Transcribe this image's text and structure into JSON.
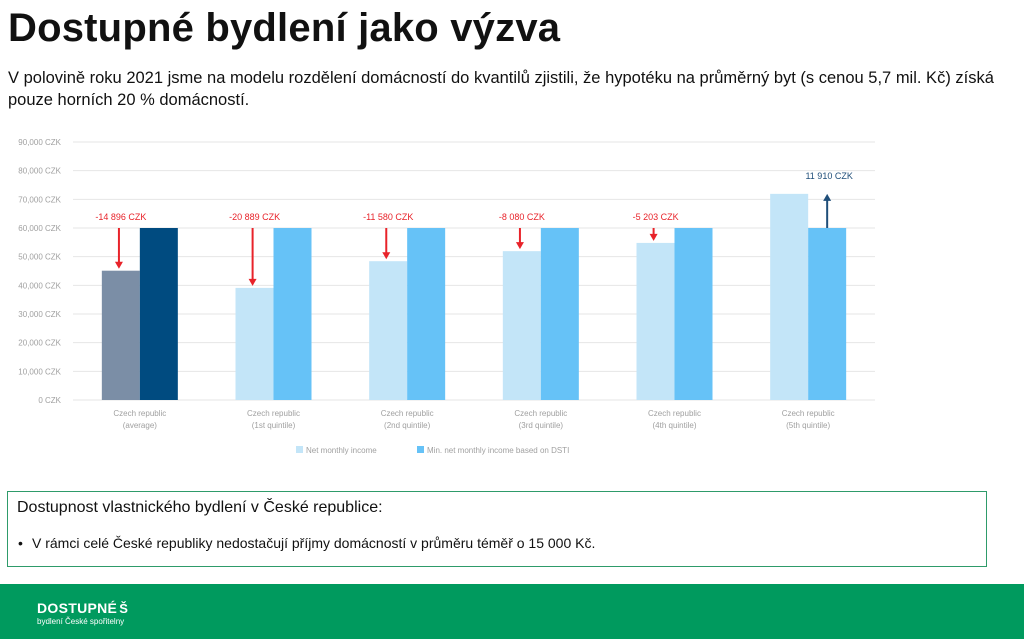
{
  "page": {
    "title": "Dostupné bydlení jako výzva",
    "subtitle": "V polovině roku 2021 jsme na modelu rozdělení domácností do kvantilů zjistili, že hypotéku na průměrný byt (s cenou 5,7 mil. Kč) získá pouze horních 20 % domácností."
  },
  "chart_data": {
    "type": "bar",
    "categories": [
      [
        "Czech republic",
        "(average)"
      ],
      [
        "Czech republic",
        "(1st quintile)"
      ],
      [
        "Czech republic",
        "(2nd quintile)"
      ],
      [
        "Czech republic",
        "(3rd quintile)"
      ],
      [
        "Czech republic",
        "(4th quintile)"
      ],
      [
        "Czech republic",
        "(5th quintile)"
      ]
    ],
    "series": [
      {
        "name": "Net monthly income",
        "values": [
          45104,
          39111,
          48420,
          51920,
          54797,
          71910
        ]
      },
      {
        "name": "Min. net monthly income based on DSTI",
        "values": [
          60000,
          60000,
          60000,
          60000,
          60000,
          60000
        ]
      }
    ],
    "annotations": [
      "-14 896 CZK",
      "-20 889 CZK",
      "-11 580 CZK",
      "-8 080 CZK",
      "-5 203 CZK",
      "11 910 CZK"
    ],
    "yticks": [
      "0 CZK",
      "10,000 CZK",
      "20,000 CZK",
      "30,000 CZK",
      "40,000 CZK",
      "50,000 CZK",
      "60,000 CZK",
      "70,000 CZK",
      "80,000 CZK",
      "90,000 CZK"
    ],
    "ylim": [
      0,
      90000
    ],
    "grid": true,
    "legend": "bottom",
    "colors": {
      "income": "#c3e5f8",
      "dsti": "#66c2f7",
      "income_average": "#7b8ea6",
      "dsti_average": "#004b80",
      "arrow_negative": "#e8232a",
      "arrow_positive": "#1f4e79",
      "grid": "#e6e6e6",
      "axis_text": "#a0a0a0"
    }
  },
  "info": {
    "heading": "Dostupnost vlastnického bydlení v České republice:",
    "bullet": "V rámci celé České republiky nedostačují příjmy domácností v průměru téměř o 15 000 Kč."
  },
  "footer": {
    "logo_main": "DOSTUPNÉ",
    "logo_mark": "Š",
    "logo_sub": "bydlení České spořitelny"
  }
}
